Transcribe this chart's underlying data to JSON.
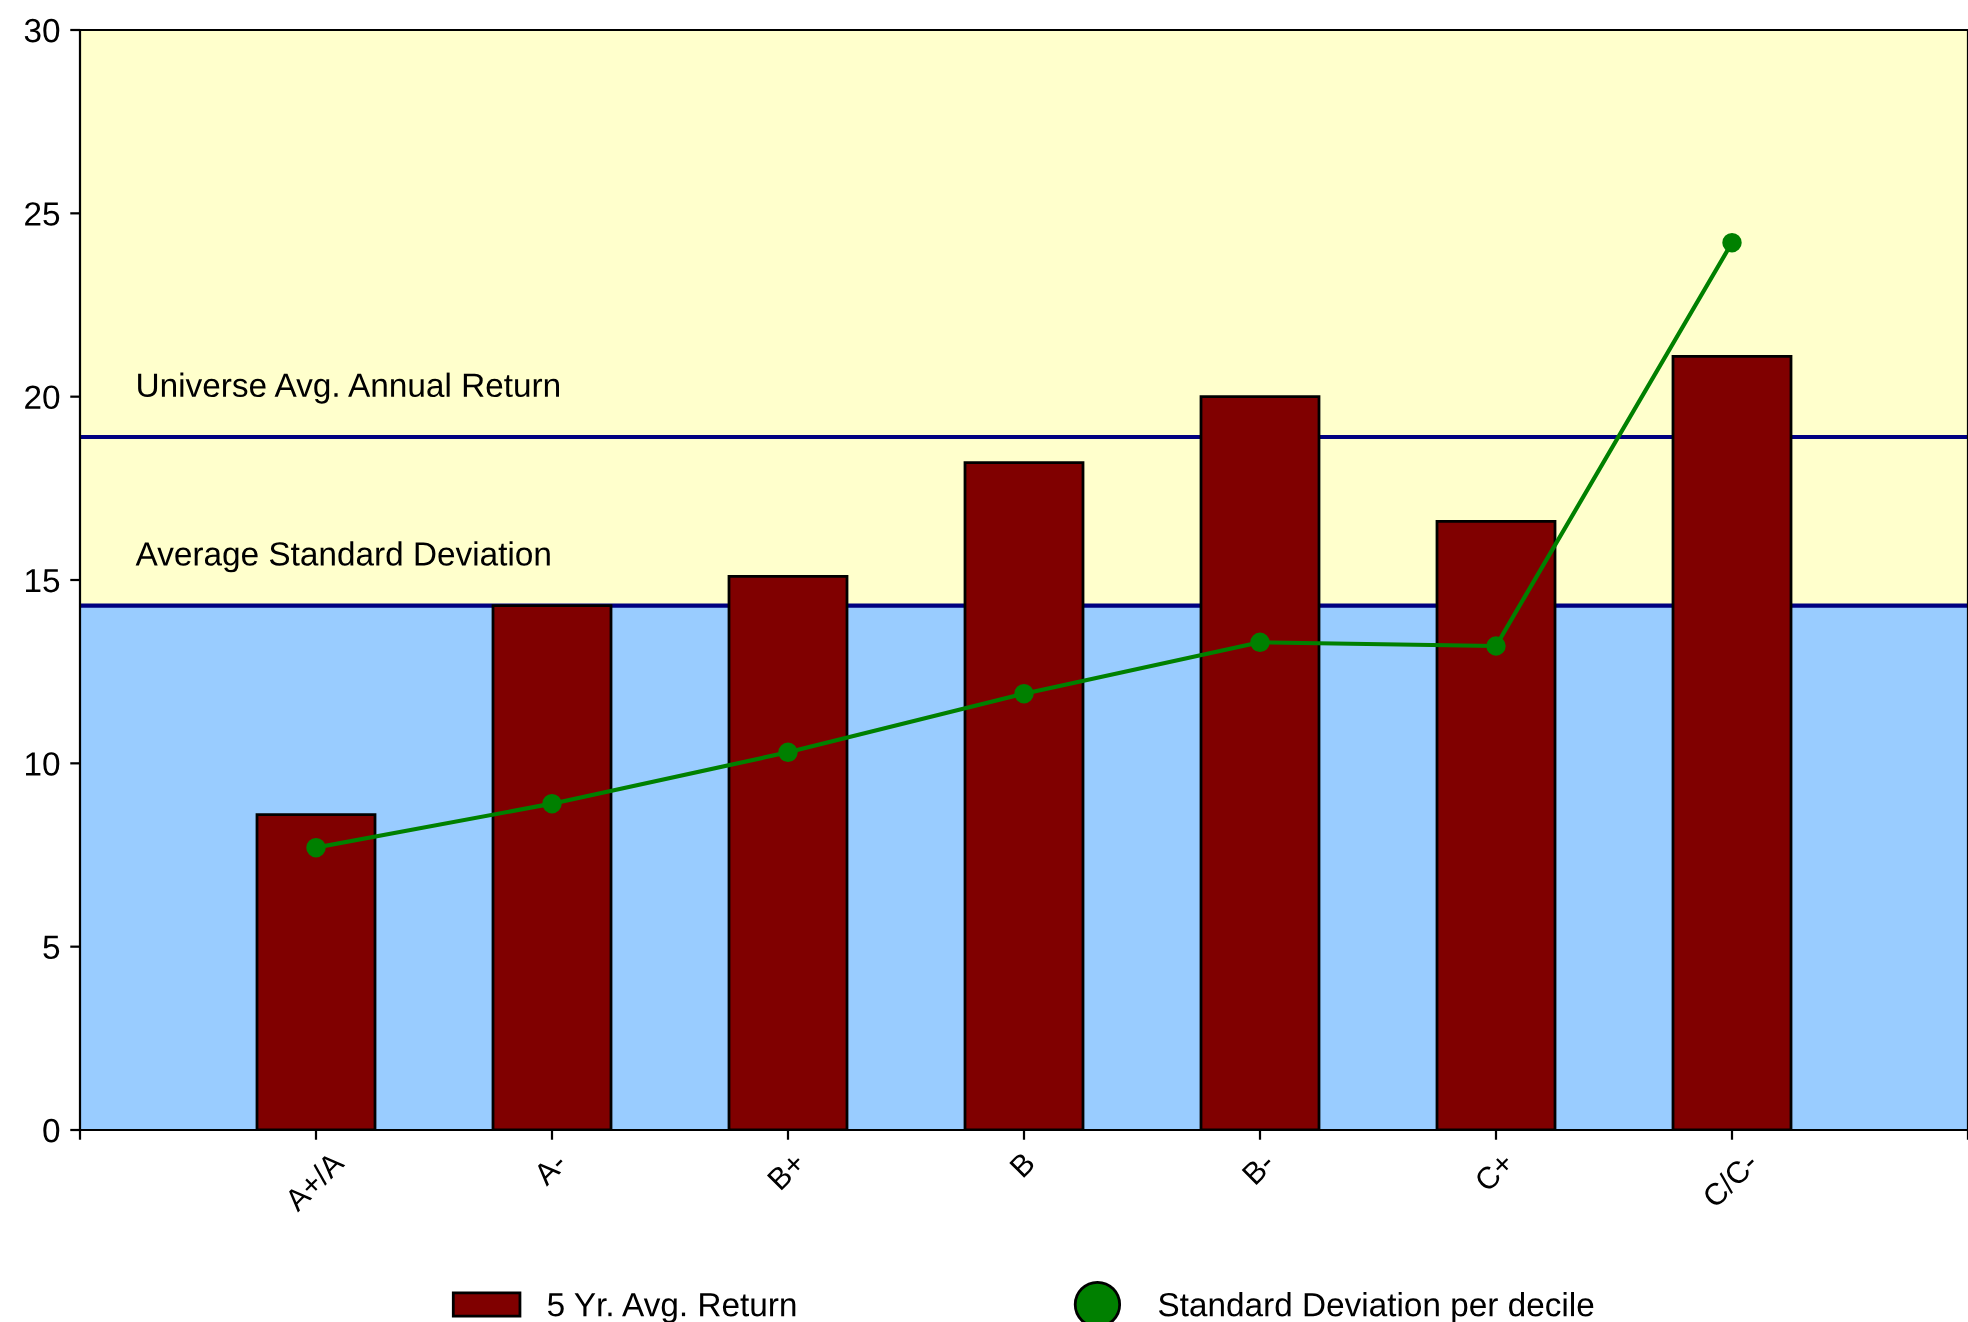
{
  "chart_data": {
    "type": "bar",
    "categories": [
      null,
      "A+/A",
      "A-",
      "B+",
      "B",
      "B-",
      "C+",
      "C/C-",
      null
    ],
    "series": [
      {
        "name": "5 Yr. Avg. Return",
        "color": "#800000",
        "values": [
          null,
          8.6,
          14.3,
          15.1,
          18.2,
          20.0,
          16.6,
          21.1,
          null
        ]
      },
      {
        "name": "Standard Deviation per decile",
        "type": "line",
        "color": "#008000",
        "marker": "circle",
        "values": [
          null,
          7.7,
          8.9,
          10.3,
          11.9,
          13.3,
          13.2,
          24.2,
          null
        ]
      }
    ],
    "ylim": [
      0,
      30
    ],
    "yticks": [
      0,
      5,
      10,
      15,
      20,
      25,
      30
    ],
    "bands": [
      {
        "axis": "y",
        "from": 0,
        "to": 14.3,
        "color": "#99ccff"
      },
      {
        "axis": "y",
        "from": 14.3,
        "to": 30,
        "color": "#ffffcc"
      }
    ],
    "ref_lines": [
      {
        "axis": "y",
        "value": 18.9,
        "label": "Universe Avg. Annual Return",
        "color": "#000080"
      },
      {
        "axis": "y",
        "value": 14.3,
        "label": "Average Standard Deviation",
        "color": "#000080"
      }
    ],
    "grid": false,
    "legend": "bottom"
  }
}
